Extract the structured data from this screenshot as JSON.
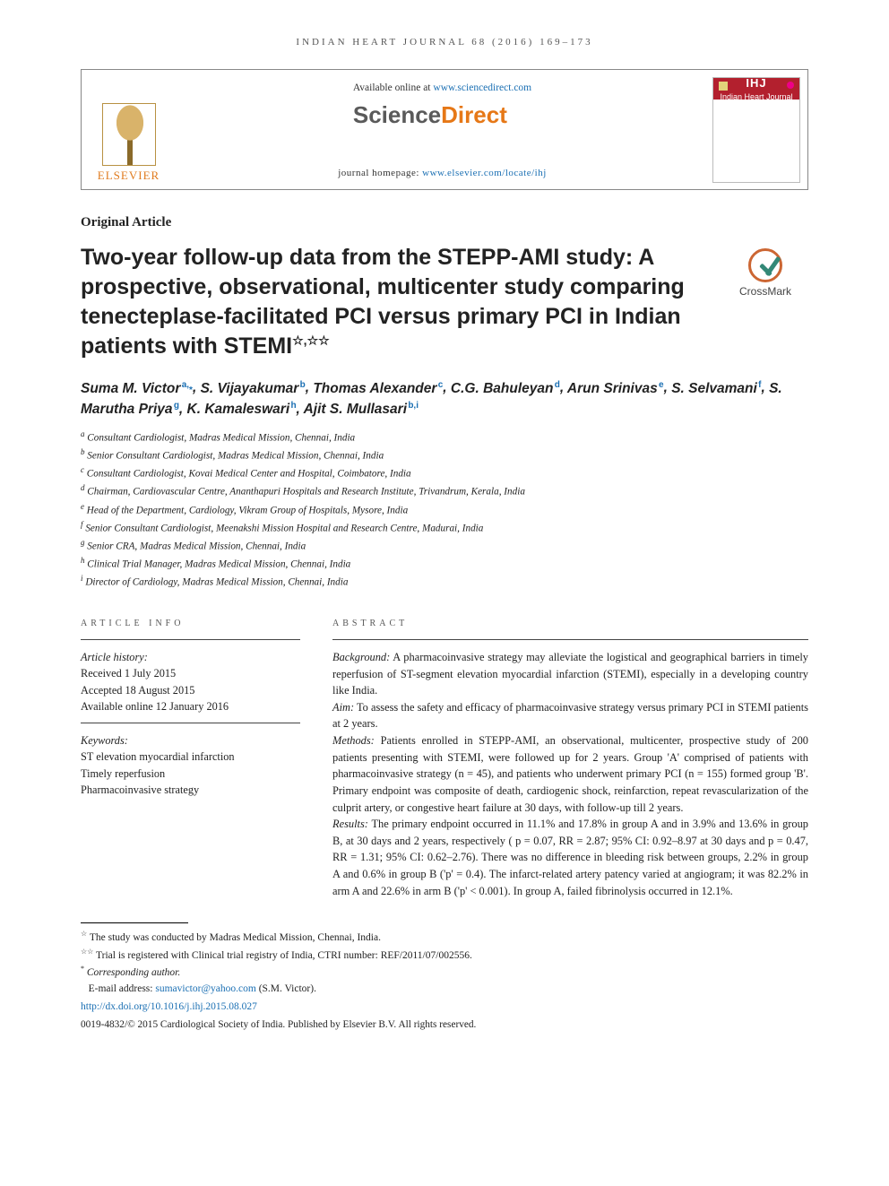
{
  "running_head": "INDIAN HEART JOURNAL 68 (2016) 169–173",
  "availability": {
    "prefix": "Available online at ",
    "url": "www.sciencedirect.com"
  },
  "sd_logo": {
    "left": "Science",
    "right": "Direct"
  },
  "journal_home": {
    "prefix": "journal homepage: ",
    "url": "www.elsevier.com/locate/ihj"
  },
  "elsevier_word": "ELSEVIER",
  "cover": {
    "abbrev": "IHJ",
    "name": "Indian Heart Journal"
  },
  "article_type": "Original Article",
  "title_main": "Two-year follow-up data from the STEPP-AMI study: A prospective, observational, multicenter study comparing tenecteplase-facilitated PCI versus primary PCI in Indian patients with STEMI",
  "title_stars": "☆,☆☆",
  "crossmark_label": "CrossMark",
  "authors": [
    {
      "name": "Suma M. Victor",
      "sup": "a,",
      "corr": "*"
    },
    {
      "name": "S. Vijayakumar",
      "sup": "b"
    },
    {
      "name": "Thomas Alexander",
      "sup": "c"
    },
    {
      "name": "C.G. Bahuleyan",
      "sup": "d"
    },
    {
      "name": "Arun Srinivas",
      "sup": "e"
    },
    {
      "name": "S. Selvamani",
      "sup": "f"
    },
    {
      "name": "S. Marutha Priya",
      "sup": "g"
    },
    {
      "name": "K. Kamaleswari",
      "sup": "h"
    },
    {
      "name": "Ajit S. Mullasari",
      "sup": "b,i"
    }
  ],
  "affiliations": [
    {
      "key": "a",
      "text": "Consultant Cardiologist, Madras Medical Mission, Chennai, India"
    },
    {
      "key": "b",
      "text": "Senior Consultant Cardiologist, Madras Medical Mission, Chennai, India"
    },
    {
      "key": "c",
      "text": "Consultant Cardiologist, Kovai Medical Center and Hospital, Coimbatore, India"
    },
    {
      "key": "d",
      "text": "Chairman, Cardiovascular Centre, Ananthapuri Hospitals and Research Institute, Trivandrum, Kerala, India"
    },
    {
      "key": "e",
      "text": "Head of the Department, Cardiology, Vikram Group of Hospitals, Mysore, India"
    },
    {
      "key": "f",
      "text": "Senior Consultant Cardiologist, Meenakshi Mission Hospital and Research Centre, Madurai, India"
    },
    {
      "key": "g",
      "text": "Senior CRA, Madras Medical Mission, Chennai, India"
    },
    {
      "key": "h",
      "text": "Clinical Trial Manager, Madras Medical Mission, Chennai, India"
    },
    {
      "key": "i",
      "text": "Director of Cardiology, Madras Medical Mission, Chennai, India"
    }
  ],
  "section_heads": {
    "info": "ARTICLE INFO",
    "abstract": "ABSTRACT"
  },
  "article_info": {
    "history_label": "Article history:",
    "received": "Received 1 July 2015",
    "accepted": "Accepted 18 August 2015",
    "online": "Available online 12 January 2016",
    "keywords_label": "Keywords:",
    "keywords": [
      "ST elevation myocardial infarction",
      "Timely reperfusion",
      "Pharmacoinvasive strategy"
    ]
  },
  "abstract": {
    "background_label": "Background:",
    "background": "A pharmacoinvasive strategy may alleviate the logistical and geographical barriers in timely reperfusion of ST-segment elevation myocardial infarction (STEMI), especially in a developing country like India.",
    "aim_label": "Aim:",
    "aim": "To assess the safety and efficacy of pharmacoinvasive strategy versus primary PCI in STEMI patients at 2 years.",
    "methods_label": "Methods:",
    "methods": "Patients enrolled in STEPP-AMI, an observational, multicenter, prospective study of 200 patients presenting with STEMI, were followed up for 2 years. Group 'A' comprised of patients with pharmacoinvasive strategy (n = 45), and patients who underwent primary PCI (n = 155) formed group 'B'. Primary endpoint was composite of death, cardiogenic shock, reinfarction, repeat revascularization of the culprit artery, or congestive heart failure at 30 days, with follow-up till 2 years.",
    "results_label": "Results:",
    "results": "The primary endpoint occurred in 11.1% and 17.8% in group A and in 3.9% and 13.6% in group B, at 30 days and 2 years, respectively ( p = 0.07, RR = 2.87; 95% CI: 0.92–8.97 at 30 days and p = 0.47, RR = 1.31; 95% CI: 0.62–2.76). There was no difference in bleeding risk between groups, 2.2% in group A and 0.6% in group B ('p' = 0.4). The infarct-related artery patency varied at angiogram; it was 82.2% in arm A and 22.6% in arm B ('p' < 0.001). In group A, failed fibrinolysis occurred in 12.1%."
  },
  "footnotes": {
    "star1": "The study was conducted by Madras Medical Mission, Chennai, India.",
    "star2": "Trial is registered with Clinical trial registry of India, CTRI number: REF/2011/07/002556.",
    "corr_label": "Corresponding author.",
    "email_label": "E-mail address: ",
    "email": "sumavictor@yahoo.com",
    "email_who": " (S.M. Victor).",
    "doi": "http://dx.doi.org/10.1016/j.ihj.2015.08.027",
    "copyright": "0019-4832/© 2015 Cardiological Society of India. Published by Elsevier B.V. All rights reserved."
  }
}
